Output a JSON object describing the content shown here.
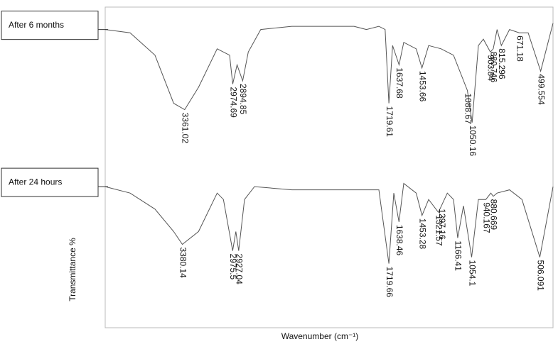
{
  "chart_data": {
    "type": "line",
    "x_label": "Wavenumber (cm⁻¹)",
    "y_label": "Transmittance %",
    "xlim": [
      4000,
      400
    ],
    "ylim": [
      0,
      100
    ],
    "series": [
      {
        "name": "After 6 months",
        "color": "#555555",
        "x": [
          4000,
          3800,
          3600,
          3450,
          3361.02,
          3250,
          3100,
          3000,
          2974.69,
          2940,
          2894.85,
          2850,
          2750,
          2500,
          2000,
          1900,
          1800,
          1750,
          1719.61,
          1690,
          1637.68,
          1600,
          1500,
          1453.66,
          1400,
          1300,
          1200,
          1088.67,
          1050.16,
          1000,
          960,
          903.84,
          880.746,
          850,
          815.296,
          750,
          671.18,
          600,
          499.554,
          400
        ],
        "values": [
          93,
          92,
          85,
          70,
          68,
          75,
          87,
          85,
          76,
          82,
          77,
          86,
          93,
          94,
          94,
          93,
          94,
          93,
          70,
          88,
          82,
          89,
          87,
          81,
          88,
          87,
          85,
          74,
          64,
          88,
          90,
          86,
          87,
          93,
          88,
          93,
          92,
          92,
          80,
          95
        ],
        "peaks": [
          3361.02,
          2974.69,
          2894.85,
          1719.61,
          1637.68,
          1453.66,
          1088.67,
          1050.16,
          903.84,
          880.746,
          815.296,
          671.18,
          499.554
        ]
      },
      {
        "name": "After 24 hours",
        "color": "#555555",
        "x": [
          4000,
          3800,
          3600,
          3450,
          3380.14,
          3250,
          3100,
          3050,
          2975.5,
          2950,
          2927.04,
          2880,
          2800,
          2500,
          2000,
          1800,
          1719.66,
          1680,
          1638.46,
          1600,
          1500,
          1453.28,
          1400,
          1321.57,
          1297.16,
          1250,
          1200,
          1166.41,
          1120,
          1054.1,
          1000,
          940.167,
          900,
          880.669,
          850,
          750,
          650,
          506.091,
          400
        ],
        "values": [
          44,
          42,
          37,
          30,
          26,
          30,
          42,
          40,
          24,
          30,
          24,
          40,
          44,
          43,
          43,
          43,
          20,
          42,
          33,
          45,
          42,
          35,
          40,
          36,
          38,
          42,
          40,
          28,
          38,
          22,
          40,
          40,
          42,
          41,
          42,
          43,
          40,
          22,
          44
        ],
        "peaks": [
          3380.14,
          2975.5,
          2927.04,
          1719.66,
          1638.46,
          1453.28,
          1321.57,
          1297.16,
          1166.41,
          1054.1,
          940.167,
          880.669,
          506.091
        ]
      }
    ]
  }
}
